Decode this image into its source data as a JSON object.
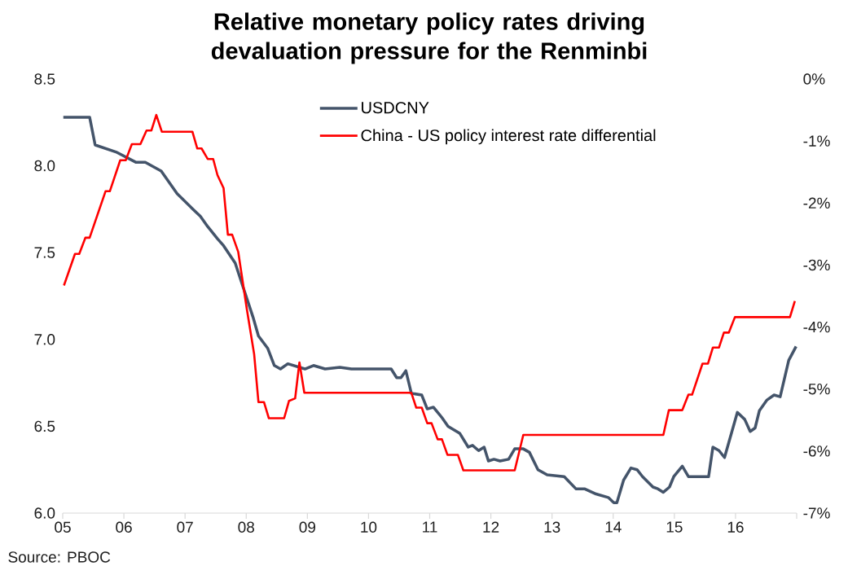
{
  "chart_data": {
    "type": "line",
    "title": "Relative monetary policy rates driving devaluation pressure for the Renminbi",
    "annotations": [
      "Source: PBOC"
    ],
    "xlim": [
      2005,
      2017
    ],
    "xticks": [
      {
        "value": 2005,
        "label": "05"
      },
      {
        "value": 2006,
        "label": "06"
      },
      {
        "value": 2007,
        "label": "07"
      },
      {
        "value": 2008,
        "label": "08"
      },
      {
        "value": 2009,
        "label": "09"
      },
      {
        "value": 2010,
        "label": "10"
      },
      {
        "value": 2011,
        "label": "11"
      },
      {
        "value": 2012,
        "label": "12"
      },
      {
        "value": 2013,
        "label": "13"
      },
      {
        "value": 2014,
        "label": "14"
      },
      {
        "value": 2015,
        "label": "15"
      },
      {
        "value": 2016,
        "label": "16"
      },
      {
        "value": 2017,
        "label": null
      }
    ],
    "ylim": [
      6.0,
      8.5
    ],
    "yticks": [
      {
        "value": 6.0,
        "label": "6.0"
      },
      {
        "value": 6.5,
        "label": "6.5"
      },
      {
        "value": 7.0,
        "label": "7.0"
      },
      {
        "value": 7.5,
        "label": "7.5"
      },
      {
        "value": 8.0,
        "label": "8.0"
      },
      {
        "value": 8.5,
        "label": "8.5"
      }
    ],
    "y2lim": [
      -7,
      0
    ],
    "y2ticks": [
      {
        "value": -7,
        "label": "-7%"
      },
      {
        "value": -6,
        "label": "-6%"
      },
      {
        "value": -5,
        "label": "-5%"
      },
      {
        "value": -4,
        "label": "-4%"
      },
      {
        "value": -3,
        "label": "-3%"
      },
      {
        "value": -2,
        "label": "-2%"
      },
      {
        "value": -1,
        "label": "-1%"
      },
      {
        "value": 0,
        "label": "0%"
      }
    ],
    "legend": "top",
    "grid": false,
    "series": [
      {
        "name": "USDCNY",
        "color": "#44546a",
        "x": [
          2005.01,
          2005.44,
          2005.53,
          2005.87,
          2006.2,
          2006.35,
          2006.61,
          2006.87,
          2007.13,
          2007.25,
          2007.37,
          2007.53,
          2007.63,
          2007.82,
          2007.96,
          2008.11,
          2008.2,
          2008.35,
          2008.46,
          2008.56,
          2008.68,
          2008.96,
          2009.1,
          2009.29,
          2009.53,
          2009.72,
          2010.37,
          2010.46,
          2010.53,
          2010.61,
          2010.7,
          2010.87,
          2010.96,
          2011.06,
          2011.2,
          2011.3,
          2011.49,
          2011.63,
          2011.7,
          2011.8,
          2011.89,
          2011.96,
          2012.05,
          2012.15,
          2012.29,
          2012.39,
          2012.53,
          2012.63,
          2012.77,
          2012.92,
          2013.2,
          2013.39,
          2013.53,
          2013.72,
          2013.92,
          2014.01,
          2014.06,
          2014.17,
          2014.29,
          2014.39,
          2014.48,
          2014.65,
          2014.73,
          2014.82,
          2014.92,
          2014.99,
          2015.13,
          2015.23,
          2015.37,
          2015.56,
          2015.63,
          2015.73,
          2015.82,
          2016.03,
          2016.15,
          2016.24,
          2016.32,
          2016.39,
          2016.51,
          2016.63,
          2016.73,
          2016.87,
          2016.99
        ],
        "values": [
          8.28,
          8.28,
          8.12,
          8.08,
          8.02,
          8.02,
          7.97,
          7.84,
          7.75,
          7.71,
          7.65,
          7.58,
          7.54,
          7.44,
          7.29,
          7.13,
          7.02,
          6.95,
          6.85,
          6.83,
          6.86,
          6.83,
          6.85,
          6.83,
          6.84,
          6.83,
          6.83,
          6.78,
          6.78,
          6.82,
          6.69,
          6.68,
          6.6,
          6.61,
          6.55,
          6.5,
          6.46,
          6.38,
          6.39,
          6.36,
          6.38,
          6.3,
          6.31,
          6.3,
          6.31,
          6.37,
          6.37,
          6.35,
          6.25,
          6.22,
          6.21,
          6.14,
          6.14,
          6.11,
          6.09,
          6.06,
          6.06,
          6.19,
          6.26,
          6.25,
          6.21,
          6.15,
          6.14,
          6.12,
          6.15,
          6.21,
          6.27,
          6.21,
          6.21,
          6.21,
          6.38,
          6.36,
          6.32,
          6.58,
          6.54,
          6.47,
          6.49,
          6.59,
          6.65,
          6.68,
          6.67,
          6.88,
          6.96
        ]
      },
      {
        "name": "China - US policy interest rate differential",
        "color": "#ff0000",
        "axis": "y2",
        "x": [
          2005.02,
          2005.2,
          2005.27,
          2005.37,
          2005.44,
          2005.7,
          2005.77,
          2005.94,
          2006.03,
          2006.13,
          2006.27,
          2006.37,
          2006.45,
          2006.53,
          2006.62,
          2007.12,
          2007.2,
          2007.27,
          2007.37,
          2007.46,
          2007.53,
          2007.63,
          2007.7,
          2007.77,
          2007.87,
          2008.01,
          2008.13,
          2008.2,
          2008.29,
          2008.37,
          2008.62,
          2008.7,
          2008.8,
          2008.87,
          2008.95,
          2010.7,
          2010.78,
          2010.87,
          2010.96,
          2011.03,
          2011.13,
          2011.2,
          2011.29,
          2011.46,
          2011.55,
          2012.39,
          2012.53,
          2014.82,
          2014.91,
          2015.13,
          2015.23,
          2015.29,
          2015.46,
          2015.55,
          2015.63,
          2015.73,
          2015.81,
          2015.89,
          2015.99,
          2016.89,
          2016.97
        ],
        "values": [
          -3.33,
          -2.82,
          -2.82,
          -2.56,
          -2.56,
          -1.81,
          -1.81,
          -1.31,
          -1.31,
          -1.05,
          -1.05,
          -0.83,
          -0.83,
          -0.58,
          -0.85,
          -0.85,
          -1.12,
          -1.12,
          -1.29,
          -1.29,
          -1.55,
          -1.76,
          -2.51,
          -2.51,
          -2.79,
          -3.71,
          -4.44,
          -5.21,
          -5.21,
          -5.47,
          -5.47,
          -5.19,
          -5.15,
          -4.57,
          -5.06,
          -5.06,
          -5.3,
          -5.3,
          -5.55,
          -5.55,
          -5.81,
          -5.81,
          -6.06,
          -6.06,
          -6.31,
          -6.31,
          -5.74,
          -5.74,
          -5.34,
          -5.34,
          -5.09,
          -5.09,
          -4.59,
          -4.59,
          -4.33,
          -4.33,
          -4.09,
          -4.09,
          -3.84,
          -3.84,
          -3.58
        ]
      }
    ]
  }
}
